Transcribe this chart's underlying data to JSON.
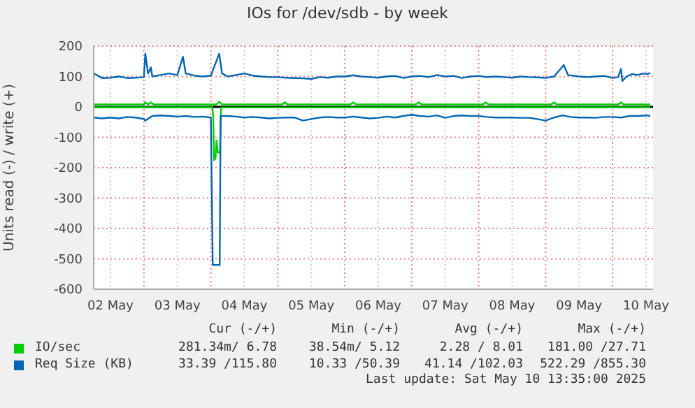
{
  "chart_data": {
    "type": "line",
    "title": "IOs for /dev/sdb - by week",
    "ylabel": "Units read (-) / write (+)",
    "xlim": [
      "2025-05-02T06:00",
      "2025-05-10T14:30"
    ],
    "xticks": [
      {
        "value": "2025-05-02T12:00",
        "label": "02 May"
      },
      {
        "value": "2025-05-03T00:00",
        "label": null
      },
      {
        "value": "2025-05-03T12:00",
        "label": "03 May"
      },
      {
        "value": "2025-05-04T00:00",
        "label": null
      },
      {
        "value": "2025-05-04T12:00",
        "label": "04 May"
      },
      {
        "value": "2025-05-05T00:00",
        "label": null
      },
      {
        "value": "2025-05-05T12:00",
        "label": "05 May"
      },
      {
        "value": "2025-05-06T00:00",
        "label": null
      },
      {
        "value": "2025-05-06T12:00",
        "label": "06 May"
      },
      {
        "value": "2025-05-07T00:00",
        "label": null
      },
      {
        "value": "2025-05-07T12:00",
        "label": "07 May"
      },
      {
        "value": "2025-05-08T00:00",
        "label": null
      },
      {
        "value": "2025-05-08T12:00",
        "label": "08 May"
      },
      {
        "value": "2025-05-09T00:00",
        "label": null
      },
      {
        "value": "2025-05-09T12:00",
        "label": "09 May"
      },
      {
        "value": "2025-05-10T00:00",
        "label": null
      },
      {
        "value": "2025-05-10T12:00",
        "label": "10 May"
      }
    ],
    "ylim": [
      -600,
      200
    ],
    "yticks": [
      -600,
      -500,
      -400,
      -300,
      -200,
      -100,
      0,
      100,
      200
    ],
    "grid": true,
    "legend": "bottom",
    "ref_lines": [
      {
        "axis": "y",
        "value": 0,
        "color": "#000000"
      }
    ],
    "series": [
      {
        "name": "IO/sec",
        "color": "#00cc00",
        "x": [
          "2025-05-02T06:00",
          "2025-05-03T00:00",
          "2025-05-03T00:30",
          "2025-05-03T01:30",
          "2025-05-03T02:30",
          "2025-05-03T03:30",
          "2025-05-04T02:00",
          "2025-05-04T03:00",
          "2025-05-04T04:00",
          "2025-05-05T01:30",
          "2025-05-05T02:30",
          "2025-05-05T03:30",
          "2025-05-06T02:00",
          "2025-05-06T03:00",
          "2025-05-06T04:00",
          "2025-05-07T01:30",
          "2025-05-07T02:30",
          "2025-05-07T03:30",
          "2025-05-08T01:30",
          "2025-05-08T02:30",
          "2025-05-08T03:30",
          "2025-05-09T02:00",
          "2025-05-09T03:00",
          "2025-05-09T04:00",
          "2025-05-10T02:00",
          "2025-05-10T03:00",
          "2025-05-10T04:00",
          "2025-05-10T13:30"
        ],
        "values": [
          8,
          8,
          15,
          8,
          15,
          8,
          8,
          17,
          8,
          8,
          15,
          8,
          8,
          15,
          8,
          8,
          15,
          8,
          8,
          15,
          8,
          8,
          15,
          8,
          8,
          15,
          8,
          8
        ]
      },
      {
        "color": "#00cc00",
        "x": [
          "2025-05-02T06:00",
          "2025-05-04T00:30",
          "2025-05-04T00:50",
          "2025-05-04T01:10",
          "2025-05-04T01:40",
          "2025-05-04T02:00",
          "2025-05-04T02:30",
          "2025-05-04T03:15",
          "2025-05-04T03:40",
          "2025-05-10T13:30"
        ],
        "values": [
          -1,
          -1,
          -30,
          -175,
          -170,
          -110,
          -150,
          -150,
          -2,
          -1
        ]
      },
      {
        "name": "Req Size (KB)",
        "color": "#0066b3",
        "x": [
          "2025-05-02T06:00",
          "2025-05-02T09:00",
          "2025-05-02T12:00",
          "2025-05-02T15:00",
          "2025-05-02T18:00",
          "2025-05-02T21:00",
          "2025-05-03T00:00",
          "2025-05-03T00:30",
          "2025-05-03T01:30",
          "2025-05-03T02:30",
          "2025-05-03T03:00",
          "2025-05-03T06:00",
          "2025-05-03T09:00",
          "2025-05-03T12:00",
          "2025-05-03T14:00",
          "2025-05-03T15:00",
          "2025-05-03T18:00",
          "2025-05-03T21:00",
          "2025-05-04T00:00",
          "2025-05-04T03:00",
          "2025-05-04T04:00",
          "2025-05-04T06:00",
          "2025-05-04T09:00",
          "2025-05-04T12:00",
          "2025-05-04T15:00",
          "2025-05-04T18:00",
          "2025-05-04T21:00",
          "2025-05-05T00:00",
          "2025-05-05T03:00",
          "2025-05-05T06:00",
          "2025-05-05T09:00",
          "2025-05-05T12:00",
          "2025-05-05T15:00",
          "2025-05-05T18:00",
          "2025-05-05T21:00",
          "2025-05-06T00:00",
          "2025-05-06T03:00",
          "2025-05-06T06:00",
          "2025-05-06T09:00",
          "2025-05-06T12:00",
          "2025-05-06T15:00",
          "2025-05-06T18:00",
          "2025-05-06T21:00",
          "2025-05-07T00:00",
          "2025-05-07T03:00",
          "2025-05-07T06:00",
          "2025-05-07T09:00",
          "2025-05-07T12:00",
          "2025-05-07T15:00",
          "2025-05-07T18:00",
          "2025-05-07T21:00",
          "2025-05-08T00:00",
          "2025-05-08T03:00",
          "2025-05-08T06:00",
          "2025-05-08T09:00",
          "2025-05-08T12:00",
          "2025-05-08T15:00",
          "2025-05-08T18:00",
          "2025-05-08T21:00",
          "2025-05-09T00:00",
          "2025-05-09T03:00",
          "2025-05-09T06:30",
          "2025-05-09T08:00",
          "2025-05-09T12:00",
          "2025-05-09T15:00",
          "2025-05-09T18:00",
          "2025-05-09T21:00",
          "2025-05-10T00:00",
          "2025-05-10T02:00",
          "2025-05-10T03:00",
          "2025-05-10T03:30",
          "2025-05-10T05:00",
          "2025-05-10T07:00",
          "2025-05-10T09:00",
          "2025-05-10T11:00",
          "2025-05-10T12:30",
          "2025-05-10T13:30"
        ],
        "values": [
          110,
          95,
          96,
          100,
          95,
          96,
          98,
          175,
          110,
          130,
          100,
          105,
          110,
          105,
          165,
          110,
          103,
          100,
          103,
          175,
          110,
          100,
          105,
          110,
          103,
          100,
          98,
          98,
          96,
          95,
          94,
          92,
          98,
          96,
          100,
          100,
          104,
          100,
          98,
          96,
          100,
          102,
          95,
          100,
          102,
          98,
          105,
          100,
          102,
          95,
          100,
          102,
          98,
          100,
          98,
          96,
          100,
          98,
          97,
          95,
          100,
          138,
          105,
          100,
          98,
          100,
          102,
          95,
          98,
          125,
          85,
          100,
          108,
          105,
          110,
          108,
          112
        ]
      },
      {
        "color": "#0066b3",
        "x": [
          "2025-05-02T06:00",
          "2025-05-02T09:00",
          "2025-05-02T12:00",
          "2025-05-02T15:00",
          "2025-05-02T18:00",
          "2025-05-02T21:00",
          "2025-05-03T00:00",
          "2025-05-03T00:30",
          "2025-05-03T03:00",
          "2025-05-03T06:00",
          "2025-05-03T09:00",
          "2025-05-03T12:00",
          "2025-05-03T15:00",
          "2025-05-03T18:00",
          "2025-05-03T21:00",
          "2025-05-04T00:00",
          "2025-05-04T00:40",
          "2025-05-04T03:10",
          "2025-05-04T03:30",
          "2025-05-04T06:00",
          "2025-05-04T09:00",
          "2025-05-04T12:00",
          "2025-05-04T15:00",
          "2025-05-04T18:00",
          "2025-05-04T21:00",
          "2025-05-05T00:00",
          "2025-05-05T03:00",
          "2025-05-05T06:00",
          "2025-05-05T09:00",
          "2025-05-05T12:00",
          "2025-05-05T15:00",
          "2025-05-05T18:00",
          "2025-05-05T21:00",
          "2025-05-06T00:00",
          "2025-05-06T03:00",
          "2025-05-06T06:00",
          "2025-05-06T09:00",
          "2025-05-06T12:00",
          "2025-05-06T15:00",
          "2025-05-06T18:00",
          "2025-05-06T21:00",
          "2025-05-07T00:00",
          "2025-05-07T03:00",
          "2025-05-07T06:00",
          "2025-05-07T09:00",
          "2025-05-07T12:00",
          "2025-05-07T15:00",
          "2025-05-07T18:00",
          "2025-05-07T21:00",
          "2025-05-08T00:00",
          "2025-05-08T03:00",
          "2025-05-08T06:00",
          "2025-05-08T09:00",
          "2025-05-08T12:00",
          "2025-05-08T15:00",
          "2025-05-08T18:00",
          "2025-05-08T21:00",
          "2025-05-09T00:00",
          "2025-05-09T03:00",
          "2025-05-09T06:00",
          "2025-05-09T09:00",
          "2025-05-09T12:00",
          "2025-05-09T15:00",
          "2025-05-09T18:00",
          "2025-05-09T21:00",
          "2025-05-10T00:00",
          "2025-05-10T03:00",
          "2025-05-10T06:00",
          "2025-05-10T09:00",
          "2025-05-10T12:00",
          "2025-05-10T13:30"
        ],
        "values": [
          -35,
          -38,
          -35,
          -38,
          -33,
          -35,
          -40,
          -45,
          -30,
          -28,
          -30,
          -32,
          -30,
          -33,
          -32,
          -35,
          -520,
          -520,
          -30,
          -30,
          -32,
          -35,
          -33,
          -35,
          -38,
          -36,
          -35,
          -35,
          -45,
          -40,
          -35,
          -33,
          -35,
          -35,
          -32,
          -35,
          -38,
          -36,
          -32,
          -35,
          -30,
          -26,
          -30,
          -32,
          -28,
          -36,
          -30,
          -28,
          -30,
          -30,
          -33,
          -35,
          -35,
          -35,
          -36,
          -36,
          -40,
          -45,
          -35,
          -28,
          -33,
          -35,
          -35,
          -36,
          -33,
          -33,
          -35,
          -30,
          -30,
          -28,
          -30
        ]
      }
    ],
    "annotations": [
      "Cur (-/+)",
      "Min (-/+)",
      "Avg (-/+)",
      "Max (-/+)",
      "281.34m/ 6.78",
      "38.54m/ 5.12",
      "2.28 / 8.01",
      "181.00 /27.71",
      "33.39 /115.80",
      "10.33 /50.39",
      "41.14 /102.03",
      "522.29 /855.30",
      "Last update: Sat May 10 13:35:00 2025"
    ]
  }
}
